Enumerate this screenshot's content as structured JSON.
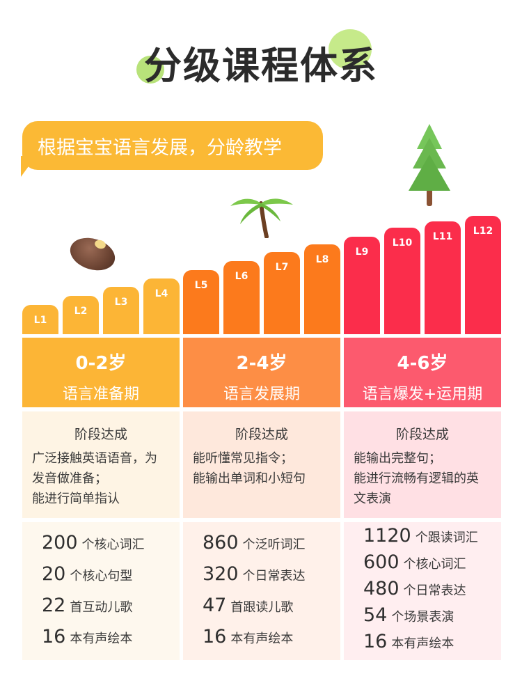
{
  "title": "分级课程体系",
  "banner": "根据宝宝语言发展，分龄教学",
  "levels": [
    "L1",
    "L2",
    "L3",
    "L4",
    "L5",
    "L6",
    "L7",
    "L8",
    "L9",
    "L10",
    "L11",
    "L12"
  ],
  "colors": {
    "yellow": "#fcb536",
    "orange": "#fc7a1c",
    "red": "#fb2d4b"
  },
  "stages": [
    {
      "age": "0-2岁",
      "stage": "语言准备期",
      "achievement_title": "阶段达成",
      "achievements": [
        "广泛接触英语语音，为",
        "发音做准备；",
        "能进行简单指认"
      ],
      "stats": [
        {
          "num": "200",
          "text": "个核心词汇"
        },
        {
          "num": "20",
          "text": "个核心句型"
        },
        {
          "num": "22",
          "text": "首互动儿歌"
        },
        {
          "num": "16",
          "text": "本有声绘本"
        }
      ]
    },
    {
      "age": "2-4岁",
      "stage": "语言发展期",
      "achievement_title": "阶段达成",
      "achievements": [
        "能听懂常见指令；",
        "能输出单词和小短句"
      ],
      "stats": [
        {
          "num": "860",
          "text": "个泛听词汇"
        },
        {
          "num": "320",
          "text": "个日常表达"
        },
        {
          "num": "47",
          "text": "首跟读儿歌"
        },
        {
          "num": "16",
          "text": "本有声绘本"
        }
      ]
    },
    {
      "age": "4-6岁",
      "stage": "语言爆发+运用期",
      "achievement_title": "阶段达成",
      "achievements": [
        "能输出完整句；",
        "能进行流畅有逻辑的英",
        "文表演"
      ],
      "stats": [
        {
          "num": "1120",
          "text": "个跟读词汇"
        },
        {
          "num": "600",
          "text": "个核心词汇"
        },
        {
          "num": "480",
          "text": "个日常表达"
        },
        {
          "num": "54",
          "text": "个场景表演"
        },
        {
          "num": "16",
          "text": "本有声绘本"
        }
      ]
    }
  ]
}
